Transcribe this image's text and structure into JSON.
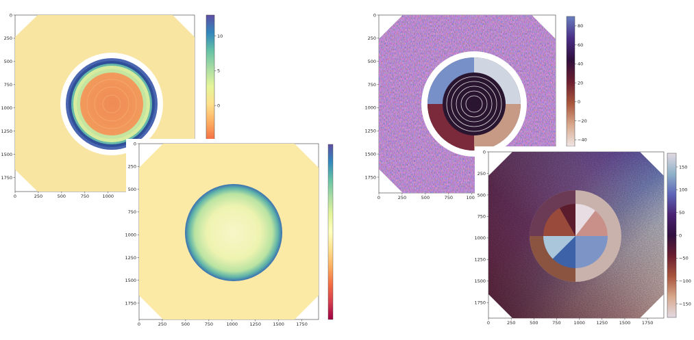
{
  "chart_data": [
    {
      "type": "heatmap",
      "id": "panel-1",
      "colormap": "Spectral",
      "xticks": [
        "0",
        "250",
        "500",
        "750",
        "1000"
      ],
      "yticks": [
        "0",
        "250",
        "500",
        "750",
        "1000",
        "1250",
        "1500",
        "1750"
      ],
      "colorbar_ticks": [
        10,
        5,
        0
      ],
      "colorbar_range": [
        -5,
        13
      ],
      "colorbar_colors": [
        "#5e4fa2",
        "#3288bd",
        "#66c2a5",
        "#abdda4",
        "#e6f598",
        "#fee08b",
        "#fdae61",
        "#f46d43"
      ]
    },
    {
      "type": "heatmap",
      "id": "panel-2",
      "colormap": "Spectral",
      "xticks": [
        "0",
        "250",
        "500",
        "750",
        "1000",
        "1250",
        "1500",
        "1750"
      ],
      "yticks": [
        "0",
        "250",
        "500",
        "750",
        "1000",
        "1250",
        "1500",
        "1750"
      ],
      "colorbar_ticks": [],
      "colorbar_colors": [
        "#5e4fa2",
        "#3288bd",
        "#66c2a5",
        "#abdda4",
        "#e6f598",
        "#ffffbf",
        "#fee08b",
        "#fdae61",
        "#f46d43",
        "#d53e4f",
        "#9e0142"
      ]
    },
    {
      "type": "heatmap",
      "id": "panel-3",
      "colormap": "twilight",
      "xticks": [
        "0",
        "250",
        "500",
        "750",
        "1000"
      ],
      "yticks": [
        "0",
        "250",
        "500",
        "750",
        "1000",
        "1250",
        "1500",
        "1750"
      ],
      "colorbar_ticks": [
        80,
        60,
        40,
        20,
        0,
        -20,
        -40
      ],
      "colorbar_range": [
        -47,
        90
      ],
      "colorbar_colors": [
        "#6a7fc0",
        "#4a2e86",
        "#2f0f3d",
        "#6b1e30",
        "#a8553c",
        "#d8a88c",
        "#efe5e3"
      ]
    },
    {
      "type": "heatmap",
      "id": "panel-4",
      "colormap": "twilight",
      "xticks": [
        "0",
        "250",
        "500",
        "750",
        "1000",
        "1250",
        "1500",
        "1750"
      ],
      "yticks": [
        "0",
        "250",
        "500",
        "750",
        "1000",
        "1250",
        "1500",
        "1750"
      ],
      "colorbar_ticks": [
        150,
        100,
        50,
        0,
        -50,
        -100,
        -150
      ],
      "colorbar_range": [
        -180,
        180
      ],
      "colorbar_colors": [
        "#e2d9e2",
        "#8fb2c9",
        "#5e65b8",
        "#4a2373",
        "#2f0f3d",
        "#6b1e30",
        "#a8553c",
        "#d8a88c",
        "#e2d9e2"
      ]
    }
  ]
}
